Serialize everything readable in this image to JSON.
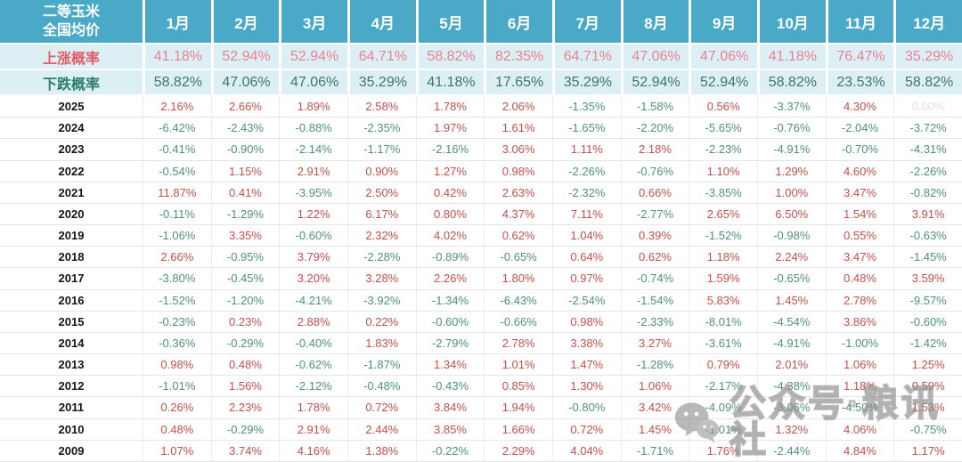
{
  "chart_data": {
    "type": "table",
    "title": "二等玉米 全国均价",
    "title_line1": "二等玉米",
    "title_line2": "全国均价",
    "columns": [
      "1月",
      "2月",
      "3月",
      "4月",
      "5月",
      "6月",
      "7月",
      "8月",
      "9月",
      "10月",
      "11月",
      "12月"
    ],
    "rise_probability": {
      "label": "上涨概率",
      "values": [
        "41.18%",
        "52.94%",
        "52.94%",
        "64.71%",
        "58.82%",
        "82.35%",
        "64.71%",
        "47.06%",
        "47.06%",
        "41.18%",
        "76.47%",
        "35.29%"
      ]
    },
    "fall_probability": {
      "label": "下跌概率",
      "values": [
        "58.82%",
        "47.06%",
        "47.06%",
        "35.29%",
        "41.18%",
        "17.65%",
        "35.29%",
        "52.94%",
        "52.94%",
        "58.82%",
        "23.53%",
        "58.82%"
      ]
    },
    "rows": [
      {
        "year": "2025",
        "values": [
          "2.16%",
          "2.66%",
          "1.89%",
          "2.58%",
          "1.78%",
          "2.06%",
          "-1.35%",
          "-1.58%",
          "0.56%",
          "-3.37%",
          "4.30%",
          "0.00%"
        ]
      },
      {
        "year": "2024",
        "values": [
          "-6.42%",
          "-2.43%",
          "-0.88%",
          "-2.35%",
          "1.97%",
          "1.61%",
          "-1.65%",
          "-2.20%",
          "-5.65%",
          "-0.76%",
          "-2.04%",
          "-3.72%"
        ]
      },
      {
        "year": "2023",
        "values": [
          "-0.41%",
          "-0.90%",
          "-2.14%",
          "-1.17%",
          "-2.16%",
          "3.06%",
          "1.11%",
          "2.18%",
          "-2.23%",
          "-4.91%",
          "-0.70%",
          "-4.31%"
        ]
      },
      {
        "year": "2022",
        "values": [
          "-0.54%",
          "1.15%",
          "2.91%",
          "0.90%",
          "1.27%",
          "0.98%",
          "-2.26%",
          "-0.76%",
          "1.10%",
          "1.29%",
          "4.60%",
          "-2.26%"
        ]
      },
      {
        "year": "2021",
        "values": [
          "11.87%",
          "0.41%",
          "-3.95%",
          "2.50%",
          "0.42%",
          "2.63%",
          "-2.32%",
          "0.66%",
          "-3.85%",
          "1.00%",
          "3.47%",
          "-0.82%"
        ]
      },
      {
        "year": "2020",
        "values": [
          "-0.11%",
          "-1.29%",
          "1.22%",
          "6.17%",
          "0.80%",
          "4.37%",
          "7.11%",
          "-2.77%",
          "2.65%",
          "6.50%",
          "1.54%",
          "3.91%"
        ]
      },
      {
        "year": "2019",
        "values": [
          "-1.06%",
          "3.35%",
          "-0.60%",
          "2.32%",
          "4.02%",
          "0.62%",
          "1.04%",
          "0.39%",
          "-1.52%",
          "-0.98%",
          "0.55%",
          "-0.63%"
        ]
      },
      {
        "year": "2018",
        "values": [
          "2.66%",
          "-0.95%",
          "3.79%",
          "-2.28%",
          "-0.89%",
          "-0.65%",
          "0.64%",
          "0.62%",
          "1.18%",
          "2.24%",
          "3.47%",
          "-1.45%"
        ]
      },
      {
        "year": "2017",
        "values": [
          "-3.80%",
          "-0.45%",
          "3.20%",
          "3.28%",
          "2.26%",
          "1.80%",
          "0.97%",
          "-0.74%",
          "1.59%",
          "-0.65%",
          "0.48%",
          "3.59%"
        ]
      },
      {
        "year": "2016",
        "values": [
          "-1.52%",
          "-1.20%",
          "-4.21%",
          "-3.92%",
          "-1.34%",
          "-6.43%",
          "-2.54%",
          "-1.54%",
          "5.83%",
          "1.45%",
          "2.78%",
          "-9.57%"
        ]
      },
      {
        "year": "2015",
        "values": [
          "-0.23%",
          "0.23%",
          "2.88%",
          "0.22%",
          "-0.60%",
          "-0.66%",
          "0.98%",
          "-2.33%",
          "-8.01%",
          "-4.54%",
          "3.86%",
          "-0.60%"
        ]
      },
      {
        "year": "2014",
        "values": [
          "-0.36%",
          "-0.29%",
          "-0.40%",
          "1.83%",
          "-2.79%",
          "2.78%",
          "3.38%",
          "3.27%",
          "-3.61%",
          "-4.91%",
          "-1.00%",
          "-1.42%"
        ]
      },
      {
        "year": "2013",
        "values": [
          "0.98%",
          "0.48%",
          "-0.62%",
          "-1.87%",
          "1.34%",
          "1.01%",
          "1.47%",
          "-1.28%",
          "0.79%",
          "2.01%",
          "1.06%",
          "1.25%"
        ]
      },
      {
        "year": "2012",
        "values": [
          "-1.01%",
          "1.56%",
          "-2.12%",
          "-0.48%",
          "-0.43%",
          "0.85%",
          "1.30%",
          "1.06%",
          "-2.17%",
          "-4.38%",
          "1.18%",
          "0.59%"
        ]
      },
      {
        "year": "2011",
        "values": [
          "0.26%",
          "2.23%",
          "1.78%",
          "0.72%",
          "3.84%",
          "1.94%",
          "-0.80%",
          "3.42%",
          "-4.09%",
          "-3.06%",
          "-4.50%",
          "1.53%"
        ]
      },
      {
        "year": "2010",
        "values": [
          "0.48%",
          "-0.29%",
          "2.91%",
          "2.44%",
          "3.85%",
          "1.66%",
          "0.72%",
          "1.45%",
          "-1.01%",
          "1.32%",
          "4.06%",
          "-0.75%"
        ]
      },
      {
        "year": "2009",
        "values": [
          "1.07%",
          "3.74%",
          "4.16%",
          "1.38%",
          "-0.22%",
          "2.29%",
          "4.04%",
          "-1.71%",
          "1.76%",
          "-2.44%",
          "4.84%",
          "1.17%"
        ]
      }
    ],
    "layout": {
      "grid": true,
      "header_bg": "#49A9C6",
      "prob_row_bg": "#DCEFF5"
    }
  },
  "colors": {
    "header_teal": "#49A9C6",
    "prob_row_bg": "#DCEFF5",
    "rise_red": "#EC8290",
    "fall_green": "#41756C",
    "cell_positive_red": "#C5504B",
    "cell_negative_green": "#4F917D",
    "cell_zero_gray": "#E2E2E2"
  },
  "watermark": {
    "icon": "wechat-icon",
    "text": "公众号·粮讯社"
  }
}
